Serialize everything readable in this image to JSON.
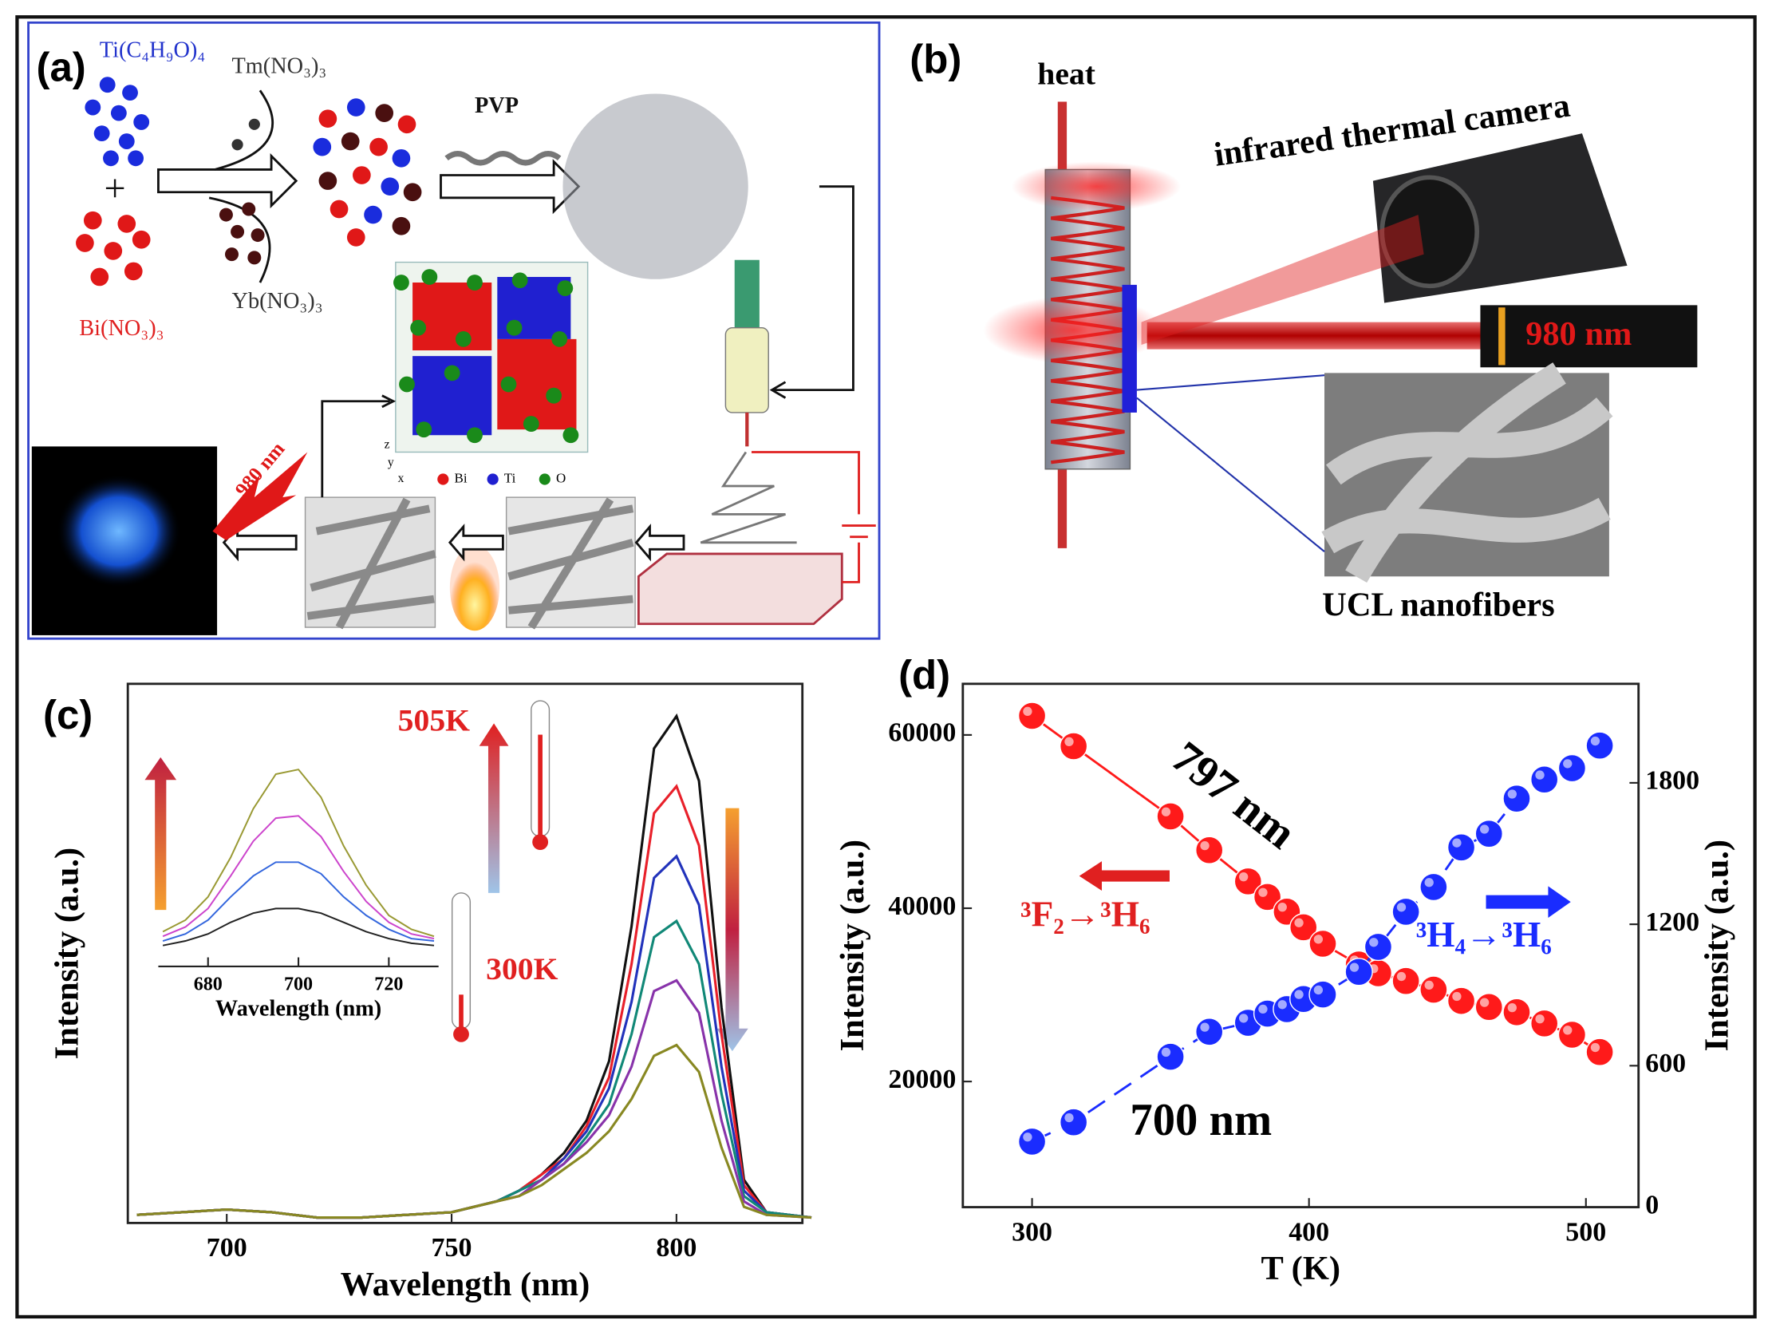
{
  "figure": {
    "panel_a": {
      "label": "(a)",
      "reagents": [
        "Ti(C₄H₉O)₄",
        "Bi(NO₃)₃",
        "Tm(NO₃)₃",
        "Yb(NO₃)₃"
      ],
      "plus": "+",
      "polymer": "PVP",
      "laser": "980 nm",
      "legend": [
        "Bi",
        "Ti",
        "O"
      ],
      "axes": [
        "x",
        "y",
        "z"
      ]
    },
    "panel_b": {
      "label": "(b)",
      "heat": "heat",
      "camera": "infrared thermal camera",
      "laser": "980 nm",
      "fibers": "UCL nanofibers"
    }
  },
  "chart_data": [
    {
      "type": "line",
      "panel_label": "(c)",
      "xlabel": "Wavelength (nm)",
      "ylabel": "Intensity (a.u.)",
      "x": [
        680,
        690,
        700,
        710,
        720,
        730,
        740,
        750,
        760,
        765,
        770,
        775,
        780,
        785,
        790,
        795,
        800,
        805,
        810,
        815,
        820,
        830
      ],
      "series": [
        {
          "color": "#111111",
          "values": [
            1.5,
            2,
            2.5,
            2,
            1,
            1,
            1.5,
            2,
            4,
            6,
            9,
            13,
            19,
            30,
            55,
            88,
            94,
            82,
            40,
            8,
            2,
            1
          ]
        },
        {
          "color": "#e8202a",
          "values": [
            1.5,
            2,
            2.5,
            2,
            1,
            1,
            1.5,
            2,
            4,
            6,
            9,
            12,
            18,
            27,
            48,
            76,
            81,
            70,
            35,
            7,
            2,
            1
          ]
        },
        {
          "color": "#2233bb",
          "values": [
            1.5,
            2,
            2.5,
            2,
            1,
            1,
            1.5,
            2,
            4,
            6,
            8,
            12,
            17,
            25,
            41,
            64,
            68,
            59,
            29,
            6,
            2,
            1
          ]
        },
        {
          "color": "#118877",
          "values": [
            1.5,
            2,
            2.5,
            2,
            1,
            1,
            1.5,
            2,
            4,
            6,
            8,
            11,
            16,
            22,
            35,
            53,
            56,
            48,
            24,
            5,
            2,
            1
          ]
        },
        {
          "color": "#8833aa",
          "values": [
            1.5,
            2,
            2.5,
            2,
            1,
            1,
            1.5,
            2,
            4,
            5,
            8,
            11,
            15,
            20,
            29,
            43,
            45,
            39,
            19,
            4,
            1.5,
            1
          ]
        },
        {
          "color": "#888822",
          "values": [
            1.5,
            2,
            2.5,
            2,
            1,
            1,
            1.5,
            2,
            4,
            5,
            7,
            10,
            13,
            17,
            23,
            31,
            33,
            28,
            14,
            3,
            1.5,
            1
          ]
        }
      ],
      "xlim": [
        678,
        828
      ],
      "ylim": [
        0,
        100
      ],
      "xticks": [
        700,
        750,
        800
      ],
      "annotations": [
        "505K",
        "300K"
      ]
    },
    {
      "type": "line",
      "xlabel": "Wavelength (nm)",
      "x": [
        670,
        675,
        680,
        685,
        690,
        695,
        700,
        705,
        710,
        715,
        720,
        725,
        730
      ],
      "series": [
        {
          "color": "#999933",
          "values": [
            15,
            20,
            30,
            47,
            68,
            83,
            85,
            73,
            52,
            35,
            22,
            16,
            13
          ]
        },
        {
          "color": "#cc44cc",
          "values": [
            13,
            17,
            25,
            39,
            54,
            64,
            65,
            56,
            41,
            28,
            19,
            14,
            12
          ]
        },
        {
          "color": "#3366dd",
          "values": [
            11,
            14,
            20,
            30,
            39,
            45,
            45,
            40,
            30,
            22,
            16,
            12,
            11
          ]
        },
        {
          "color": "#222222",
          "values": [
            9,
            11,
            14,
            19,
            23,
            25,
            25,
            23,
            19,
            15,
            12,
            10,
            9
          ]
        }
      ],
      "xlim": [
        669,
        731
      ],
      "ylim": [
        0,
        100
      ],
      "xticks": [
        680,
        700,
        720
      ]
    },
    {
      "type": "scatter",
      "panel_label": "(d)",
      "xlabel": "T (K)",
      "ylabel": "Intensity (a.u.)",
      "y2label": "Intensity (a.u.)",
      "x": [
        300,
        315,
        350,
        364,
        378,
        385,
        392,
        398,
        405,
        418,
        425,
        435,
        445,
        455,
        465,
        475,
        485,
        495,
        505
      ],
      "series": [
        {
          "name": "797 nm",
          "color": "#ff1a1a",
          "values": [
            62200,
            58700,
            50600,
            46700,
            43100,
            41300,
            39600,
            37800,
            35900,
            33500,
            32500,
            31600,
            30600,
            29300,
            28600,
            28000,
            26700,
            25400,
            23400
          ]
        },
        {
          "name": "700 nm",
          "color": "#1a2cff",
          "axis": "y2",
          "values": [
            278,
            360,
            638,
            744,
            782,
            821,
            840,
            883,
            902,
            998,
            1104,
            1253,
            1358,
            1526,
            1584,
            1733,
            1814,
            1862,
            1958
          ]
        }
      ],
      "xlim": [
        275,
        519
      ],
      "ylim": [
        5500,
        65900
      ],
      "yticks": [
        20000,
        40000,
        60000
      ],
      "y2lim": [
        0,
        2220
      ],
      "y2ticks": [
        0,
        600,
        1200,
        1800
      ],
      "xticks": [
        300,
        400,
        500
      ],
      "annotations": [
        "³F₂→³H₆",
        "³H₄→³H₆"
      ]
    }
  ]
}
